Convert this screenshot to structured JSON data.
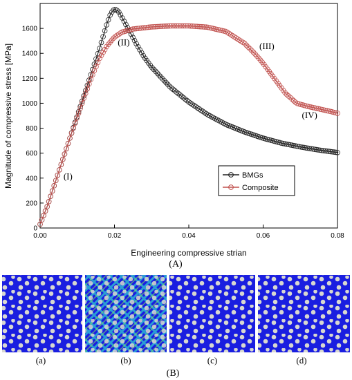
{
  "chart_data": {
    "type": "scatter",
    "xlabel": "Engineering compressive strian",
    "ylabel": "Magnitude of compressive stress  [MPa]",
    "xlim": [
      0,
      0.08
    ],
    "ylim": [
      0,
      1800
    ],
    "xticks": [
      "0.00",
      "0.02",
      "0.04",
      "0.06",
      "0.08"
    ],
    "yticks": [
      "0",
      "200",
      "400",
      "600",
      "800",
      "1000",
      "1200",
      "1400",
      "1600"
    ],
    "grid": false,
    "legend_position": "lower-right",
    "series": [
      {
        "name": "BMGs",
        "color": "#222222",
        "x": [
          0,
          0.002,
          0.004,
          0.006,
          0.008,
          0.01,
          0.012,
          0.014,
          0.016,
          0.018,
          0.019,
          0.02,
          0.021,
          0.022,
          0.024,
          0.026,
          0.028,
          0.03,
          0.035,
          0.04,
          0.045,
          0.05,
          0.055,
          0.06,
          0.065,
          0.07,
          0.075,
          0.08
        ],
        "y": [
          30,
          180,
          360,
          540,
          720,
          900,
          1080,
          1260,
          1440,
          1640,
          1720,
          1755,
          1740,
          1690,
          1580,
          1470,
          1370,
          1290,
          1130,
          1010,
          910,
          830,
          770,
          720,
          680,
          650,
          625,
          605
        ]
      },
      {
        "name": "Composite",
        "color": "#c0504d",
        "x": [
          0,
          0.002,
          0.004,
          0.006,
          0.008,
          0.01,
          0.012,
          0.014,
          0.016,
          0.018,
          0.02,
          0.022,
          0.025,
          0.03,
          0.035,
          0.04,
          0.045,
          0.05,
          0.055,
          0.058,
          0.06,
          0.063,
          0.066,
          0.069,
          0.072,
          0.075,
          0.078,
          0.08
        ],
        "y": [
          30,
          180,
          360,
          540,
          720,
          890,
          1060,
          1220,
          1360,
          1460,
          1530,
          1570,
          1595,
          1612,
          1620,
          1620,
          1610,
          1575,
          1480,
          1390,
          1320,
          1200,
          1080,
          1000,
          975,
          955,
          935,
          920
        ]
      }
    ],
    "annotations": [
      {
        "text": "(I)",
        "x": 0.0075,
        "y": 390
      },
      {
        "text": "(II)",
        "x": 0.0225,
        "y": 1465
      },
      {
        "text": "(III)",
        "x": 0.061,
        "y": 1435
      },
      {
        "text": "(IV)",
        "x": 0.0725,
        "y": 880
      }
    ],
    "caption_a": "(A)",
    "panels": [
      "(a)",
      "(b)",
      "(c)",
      "(d)"
    ],
    "caption_b": "(B)"
  }
}
